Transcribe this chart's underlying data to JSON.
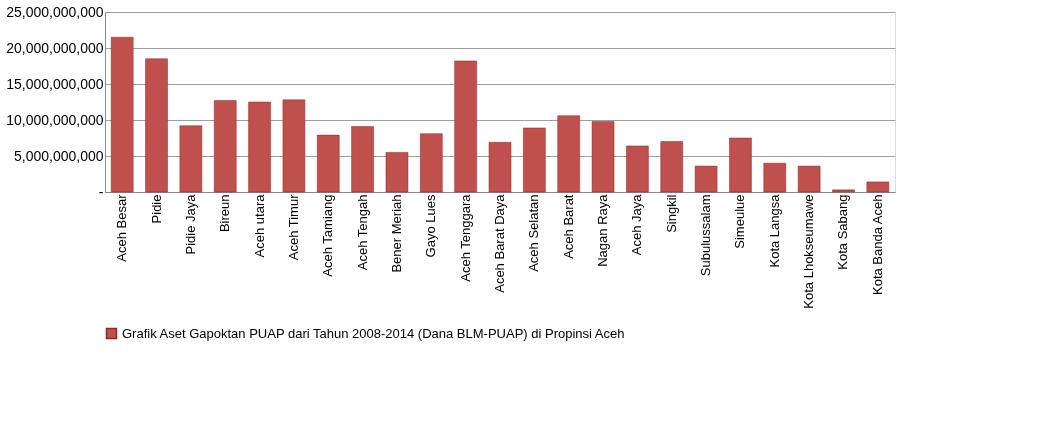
{
  "chart_data": {
    "type": "bar",
    "categories": [
      "Aceh Besar",
      "Pidie",
      "Pidie Jaya",
      "Bireun",
      "Aceh utara",
      "Aceh Timur",
      "Aceh Tamiang",
      "Aceh Tengah",
      "Bener Meriah",
      "Gayo Lues",
      "Aceh Tenggara",
      "Aceh Barat Daya",
      "Aceh Selatan",
      "Aceh Barat",
      "Nagan Raya",
      "Aceh Jaya",
      "Singkil",
      "Subulussalam",
      "Simeulue",
      "Kota Langsa",
      "Kota Lhokseumawe",
      "Kota Sabang",
      "Kota Banda Aceh"
    ],
    "series": [
      {
        "name": "Grafik Aset Gapoktan PUAP dari Tahun 2008-2014 (Dana BLM-PUAP) di Propinsi Aceh",
        "color": "#c0504d",
        "values": [
          21500000000,
          18500000000,
          9200000000,
          12700000000,
          12500000000,
          12800000000,
          7900000000,
          9100000000,
          5500000000,
          8100000000,
          18200000000,
          6900000000,
          8900000000,
          10600000000,
          9800000000,
          6400000000,
          7000000000,
          3600000000,
          7500000000,
          4000000000,
          3600000000,
          300000000,
          1400000000
        ]
      }
    ],
    "ylim": [
      0,
      25000000000
    ],
    "yticks": [
      {
        "value": 0,
        "label": "-"
      },
      {
        "value": 5000000000,
        "label": "5,000,000,000"
      },
      {
        "value": 10000000000,
        "label": "10,000,000,000"
      },
      {
        "value": 15000000000,
        "label": "15,000,000,000"
      },
      {
        "value": 20000000000,
        "label": "20,000,000,000"
      },
      {
        "value": 25000000000,
        "label": "25,000,000,000"
      }
    ],
    "grid": "y",
    "legend": "bottom"
  }
}
